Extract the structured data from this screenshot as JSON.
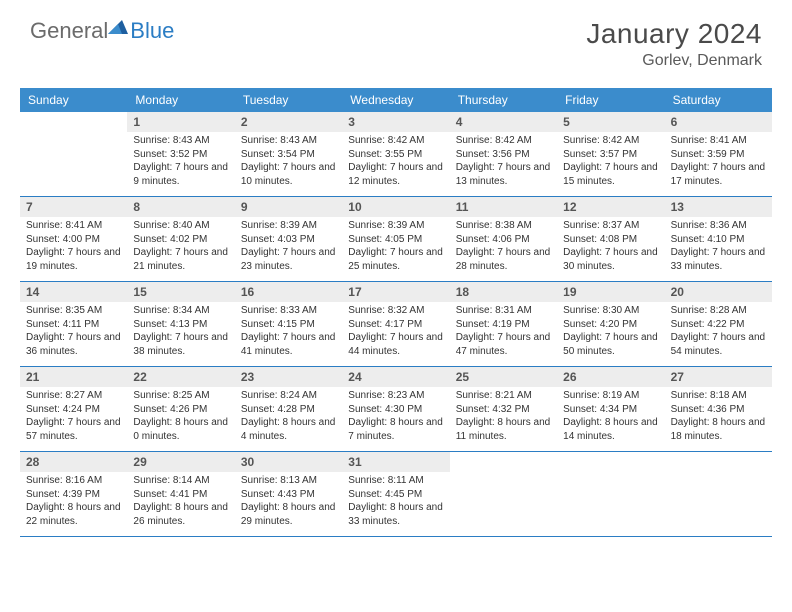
{
  "logo": {
    "text1": "General",
    "text2": "Blue"
  },
  "title": "January 2024",
  "location": "Gorlev, Denmark",
  "header_bg": "#3b8ccc",
  "border_color": "#2b7dc4",
  "daynum_bg": "#ededed",
  "week_days": [
    "Sunday",
    "Monday",
    "Tuesday",
    "Wednesday",
    "Thursday",
    "Friday",
    "Saturday"
  ],
  "weeks": [
    [
      {
        "n": "",
        "sr": "",
        "ss": "",
        "dl": ""
      },
      {
        "n": "1",
        "sr": "Sunrise: 8:43 AM",
        "ss": "Sunset: 3:52 PM",
        "dl": "Daylight: 7 hours and 9 minutes."
      },
      {
        "n": "2",
        "sr": "Sunrise: 8:43 AM",
        "ss": "Sunset: 3:54 PM",
        "dl": "Daylight: 7 hours and 10 minutes."
      },
      {
        "n": "3",
        "sr": "Sunrise: 8:42 AM",
        "ss": "Sunset: 3:55 PM",
        "dl": "Daylight: 7 hours and 12 minutes."
      },
      {
        "n": "4",
        "sr": "Sunrise: 8:42 AM",
        "ss": "Sunset: 3:56 PM",
        "dl": "Daylight: 7 hours and 13 minutes."
      },
      {
        "n": "5",
        "sr": "Sunrise: 8:42 AM",
        "ss": "Sunset: 3:57 PM",
        "dl": "Daylight: 7 hours and 15 minutes."
      },
      {
        "n": "6",
        "sr": "Sunrise: 8:41 AM",
        "ss": "Sunset: 3:59 PM",
        "dl": "Daylight: 7 hours and 17 minutes."
      }
    ],
    [
      {
        "n": "7",
        "sr": "Sunrise: 8:41 AM",
        "ss": "Sunset: 4:00 PM",
        "dl": "Daylight: 7 hours and 19 minutes."
      },
      {
        "n": "8",
        "sr": "Sunrise: 8:40 AM",
        "ss": "Sunset: 4:02 PM",
        "dl": "Daylight: 7 hours and 21 minutes."
      },
      {
        "n": "9",
        "sr": "Sunrise: 8:39 AM",
        "ss": "Sunset: 4:03 PM",
        "dl": "Daylight: 7 hours and 23 minutes."
      },
      {
        "n": "10",
        "sr": "Sunrise: 8:39 AM",
        "ss": "Sunset: 4:05 PM",
        "dl": "Daylight: 7 hours and 25 minutes."
      },
      {
        "n": "11",
        "sr": "Sunrise: 8:38 AM",
        "ss": "Sunset: 4:06 PM",
        "dl": "Daylight: 7 hours and 28 minutes."
      },
      {
        "n": "12",
        "sr": "Sunrise: 8:37 AM",
        "ss": "Sunset: 4:08 PM",
        "dl": "Daylight: 7 hours and 30 minutes."
      },
      {
        "n": "13",
        "sr": "Sunrise: 8:36 AM",
        "ss": "Sunset: 4:10 PM",
        "dl": "Daylight: 7 hours and 33 minutes."
      }
    ],
    [
      {
        "n": "14",
        "sr": "Sunrise: 8:35 AM",
        "ss": "Sunset: 4:11 PM",
        "dl": "Daylight: 7 hours and 36 minutes."
      },
      {
        "n": "15",
        "sr": "Sunrise: 8:34 AM",
        "ss": "Sunset: 4:13 PM",
        "dl": "Daylight: 7 hours and 38 minutes."
      },
      {
        "n": "16",
        "sr": "Sunrise: 8:33 AM",
        "ss": "Sunset: 4:15 PM",
        "dl": "Daylight: 7 hours and 41 minutes."
      },
      {
        "n": "17",
        "sr": "Sunrise: 8:32 AM",
        "ss": "Sunset: 4:17 PM",
        "dl": "Daylight: 7 hours and 44 minutes."
      },
      {
        "n": "18",
        "sr": "Sunrise: 8:31 AM",
        "ss": "Sunset: 4:19 PM",
        "dl": "Daylight: 7 hours and 47 minutes."
      },
      {
        "n": "19",
        "sr": "Sunrise: 8:30 AM",
        "ss": "Sunset: 4:20 PM",
        "dl": "Daylight: 7 hours and 50 minutes."
      },
      {
        "n": "20",
        "sr": "Sunrise: 8:28 AM",
        "ss": "Sunset: 4:22 PM",
        "dl": "Daylight: 7 hours and 54 minutes."
      }
    ],
    [
      {
        "n": "21",
        "sr": "Sunrise: 8:27 AM",
        "ss": "Sunset: 4:24 PM",
        "dl": "Daylight: 7 hours and 57 minutes."
      },
      {
        "n": "22",
        "sr": "Sunrise: 8:25 AM",
        "ss": "Sunset: 4:26 PM",
        "dl": "Daylight: 8 hours and 0 minutes."
      },
      {
        "n": "23",
        "sr": "Sunrise: 8:24 AM",
        "ss": "Sunset: 4:28 PM",
        "dl": "Daylight: 8 hours and 4 minutes."
      },
      {
        "n": "24",
        "sr": "Sunrise: 8:23 AM",
        "ss": "Sunset: 4:30 PM",
        "dl": "Daylight: 8 hours and 7 minutes."
      },
      {
        "n": "25",
        "sr": "Sunrise: 8:21 AM",
        "ss": "Sunset: 4:32 PM",
        "dl": "Daylight: 8 hours and 11 minutes."
      },
      {
        "n": "26",
        "sr": "Sunrise: 8:19 AM",
        "ss": "Sunset: 4:34 PM",
        "dl": "Daylight: 8 hours and 14 minutes."
      },
      {
        "n": "27",
        "sr": "Sunrise: 8:18 AM",
        "ss": "Sunset: 4:36 PM",
        "dl": "Daylight: 8 hours and 18 minutes."
      }
    ],
    [
      {
        "n": "28",
        "sr": "Sunrise: 8:16 AM",
        "ss": "Sunset: 4:39 PM",
        "dl": "Daylight: 8 hours and 22 minutes."
      },
      {
        "n": "29",
        "sr": "Sunrise: 8:14 AM",
        "ss": "Sunset: 4:41 PM",
        "dl": "Daylight: 8 hours and 26 minutes."
      },
      {
        "n": "30",
        "sr": "Sunrise: 8:13 AM",
        "ss": "Sunset: 4:43 PM",
        "dl": "Daylight: 8 hours and 29 minutes."
      },
      {
        "n": "31",
        "sr": "Sunrise: 8:11 AM",
        "ss": "Sunset: 4:45 PM",
        "dl": "Daylight: 8 hours and 33 minutes."
      },
      {
        "n": "",
        "sr": "",
        "ss": "",
        "dl": ""
      },
      {
        "n": "",
        "sr": "",
        "ss": "",
        "dl": ""
      },
      {
        "n": "",
        "sr": "",
        "ss": "",
        "dl": ""
      }
    ]
  ]
}
